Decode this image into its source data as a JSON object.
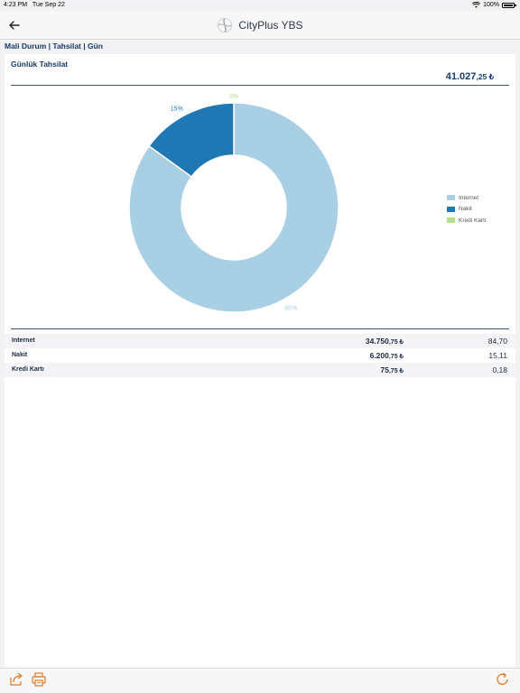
{
  "status": {
    "time": "4:23 PM",
    "date": "Tue Sep 22",
    "battery": "100%"
  },
  "nav": {
    "title": "CityPlus YBS",
    "back_icon": "back-arrow-icon",
    "logo_icon": "cityplus-logo-icon"
  },
  "breadcrumb": "Mali Durum | Tahsilat | Gün",
  "panel": {
    "title": "Günlük Tahsilat",
    "total_main": "41.027",
    "total_dec": ",25 ₺"
  },
  "chart_data": {
    "type": "pie",
    "variant": "donut",
    "categories": [
      "Internet",
      "Nakit",
      "Kredi Kartı"
    ],
    "values": [
      85,
      15,
      0
    ],
    "labels": [
      "85%",
      "15%",
      "0%"
    ],
    "colors": [
      "#a8cfe3",
      "#1f78b4",
      "#b2df8a"
    ],
    "legend_position": "right"
  },
  "table": {
    "rows": [
      {
        "label": "Internet",
        "amount_main": "34.750",
        "amount_dec": ",75 ₺",
        "percent": "84,70"
      },
      {
        "label": "Nakit",
        "amount_main": "6.200",
        "amount_dec": ",75 ₺",
        "percent": "15,11"
      },
      {
        "label": "Kredi Kartı",
        "amount_main": "75",
        "amount_dec": ",75 ₺",
        "percent": "0,18"
      }
    ]
  },
  "toolbar": {
    "share_icon": "share-icon",
    "print_icon": "print-icon",
    "refresh_icon": "refresh-icon",
    "accent": "#e07a2a"
  }
}
